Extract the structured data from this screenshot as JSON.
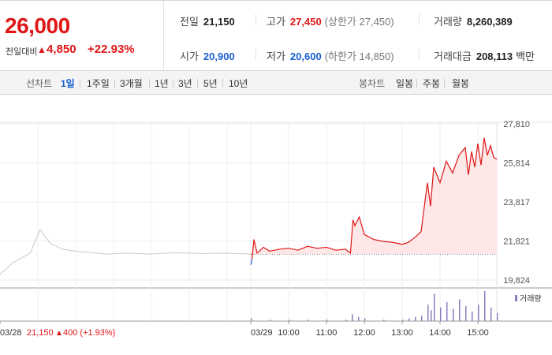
{
  "header": {
    "price": "26,000",
    "change_label": "전일대비",
    "change_arrow": "▲",
    "change_value": "4,850",
    "change_pct": "+22.93%"
  },
  "stats": {
    "prev_close": {
      "label": "전일",
      "value": "21,150"
    },
    "high": {
      "label": "고가",
      "value": "27,450",
      "sub": "(상한가 27,450)"
    },
    "volume": {
      "label": "거래량",
      "value": "8,260,389"
    },
    "open": {
      "label": "시가",
      "value": "20,900"
    },
    "low": {
      "label": "저가",
      "value": "20,600",
      "sub": "(하한가 14,850)"
    },
    "amount": {
      "label": "거래대금",
      "value": "208,113",
      "unit": "백만"
    }
  },
  "toolbar": {
    "line_label": "선차트",
    "periods": [
      "1일",
      "1주일",
      "3개월",
      "1년",
      "3년",
      "5년",
      "10년"
    ],
    "selected_period": "1일",
    "candle_label": "봉차트",
    "candles": [
      "일봉",
      "주봉",
      "월봉"
    ]
  },
  "colors": {
    "up": "#e01616",
    "down": "#1a5fd0",
    "prev_day_line": "#c8c8c8",
    "volume": "#8c7cc0",
    "fill": "#fde4e4"
  },
  "chart_data": {
    "type": "line",
    "y_ticks": [
      "27,810",
      "25,814",
      "23,817",
      "21,821",
      "19,824"
    ],
    "ylim": [
      19824,
      27810
    ],
    "x_ticks": [
      "03/29",
      "10:00",
      "11:00",
      "12:00",
      "13:00",
      "14:00",
      "15:00"
    ],
    "prev_close": 21150,
    "prev_day_label": "03/28",
    "prev_day_close": "21,150",
    "prev_day_change_arrow": "▲",
    "prev_day_change": "400 (+1.93%)",
    "volume_legend": "거래량",
    "prev_day_series": {
      "x": [
        0,
        0.05,
        0.12,
        0.16,
        0.2,
        0.25,
        0.3,
        0.35,
        0.42,
        0.5,
        0.6,
        0.7,
        0.8,
        0.9,
        1.0
      ],
      "y": [
        20100,
        20700,
        21200,
        22400,
        21700,
        21400,
        21300,
        21250,
        21150,
        21200,
        21150,
        21220,
        21180,
        21200,
        21150
      ]
    },
    "series": {
      "x": [
        "09:00",
        "09:02",
        "09:05",
        "09:10",
        "09:20",
        "09:30",
        "09:45",
        "10:00",
        "10:15",
        "10:30",
        "10:45",
        "11:00",
        "11:15",
        "11:30",
        "11:38",
        "11:42",
        "11:45",
        "11:52",
        "12:00",
        "12:15",
        "12:30",
        "12:45",
        "13:00",
        "13:10",
        "13:20",
        "13:30",
        "13:40",
        "13:45",
        "13:50",
        "14:00",
        "14:10",
        "14:20",
        "14:30",
        "14:40",
        "14:45",
        "14:50",
        "14:55",
        "15:00",
        "15:05",
        "15:10",
        "15:15",
        "15:20",
        "15:25",
        "15:30"
      ],
      "y": [
        20600,
        20900,
        21900,
        21200,
        21500,
        21300,
        21400,
        21450,
        21350,
        21550,
        21450,
        21500,
        21350,
        21400,
        21200,
        22900,
        22600,
        23050,
        22150,
        21900,
        21800,
        21750,
        21650,
        21750,
        22000,
        22300,
        24800,
        23600,
        25600,
        24800,
        25900,
        25300,
        26200,
        26600,
        25200,
        26400,
        25600,
        26800,
        25700,
        27100,
        26200,
        26700,
        26100,
        26000
      ]
    },
    "volume": {
      "x": [
        "09:00",
        "09:30",
        "10:00",
        "10:30",
        "11:00",
        "11:30",
        "11:40",
        "11:50",
        "12:00",
        "12:30",
        "13:00",
        "13:10",
        "13:20",
        "13:30",
        "13:40",
        "13:45",
        "13:50",
        "14:00",
        "14:10",
        "14:20",
        "14:30",
        "14:40",
        "14:50",
        "15:00",
        "15:10",
        "15:20",
        "15:30"
      ],
      "v": [
        2,
        1,
        1,
        1,
        1,
        1,
        5,
        3,
        2,
        1,
        1,
        2,
        3,
        4,
        12,
        8,
        20,
        10,
        14,
        9,
        16,
        11,
        7,
        12,
        22,
        10,
        6
      ]
    }
  }
}
